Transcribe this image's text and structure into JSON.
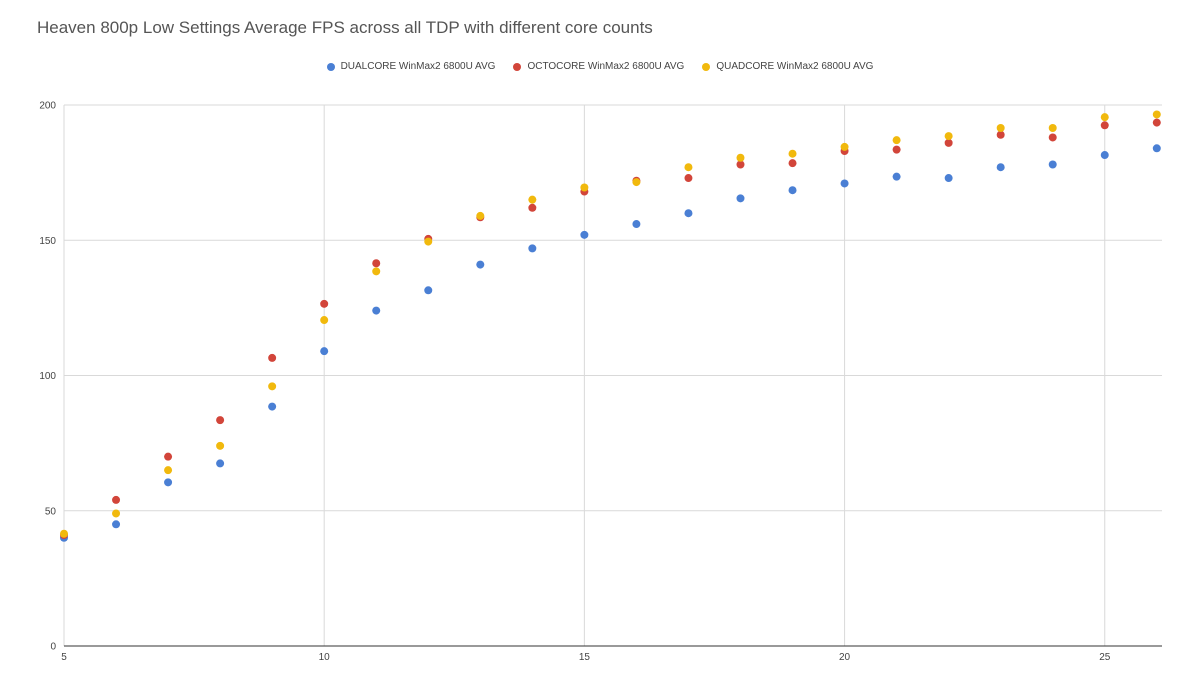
{
  "chart_data": {
    "type": "scatter",
    "title": "Heaven 800p Low Settings Average FPS across all TDP with different core counts",
    "xlabel": "",
    "ylabel": "",
    "xlim": [
      5,
      26.1
    ],
    "ylim": [
      0,
      200
    ],
    "x_ticks": [
      5,
      10,
      15,
      20,
      25
    ],
    "y_ticks": [
      0,
      50,
      100,
      150,
      200
    ],
    "grid": true,
    "legend_position": "top",
    "x": [
      5,
      6,
      7,
      8,
      9,
      10,
      11,
      12,
      13,
      14,
      15,
      16,
      17,
      18,
      19,
      20,
      21,
      22,
      23,
      24,
      25,
      26
    ],
    "series": [
      {
        "name": "DUALCORE WinMax2 6800U AVG",
        "color": "#4a7fd4",
        "values": [
          40,
          45,
          60.5,
          67.5,
          88.5,
          109,
          124,
          131.5,
          141,
          147,
          152,
          156,
          160,
          165.5,
          168.5,
          171,
          173.5,
          173,
          177,
          178,
          181.5,
          184
        ]
      },
      {
        "name": "OCTOCORE WinMax2 6800U AVG",
        "color": "#d2453a",
        "values": [
          41,
          54,
          70,
          83.5,
          106.5,
          126.5,
          141.5,
          150.5,
          158.5,
          162,
          168,
          172,
          173,
          178,
          178.5,
          183,
          183.5,
          186,
          189,
          188,
          192.5,
          193.5
        ]
      },
      {
        "name": "QUADCORE WinMax2 6800U AVG",
        "color": "#f1b90d",
        "values": [
          41.5,
          49,
          65,
          74,
          96,
          120.5,
          138.5,
          149.5,
          159,
          165,
          169.5,
          171.5,
          177,
          180.5,
          182,
          184.5,
          187,
          188.5,
          191.5,
          191.5,
          195.5,
          196.5
        ]
      }
    ]
  }
}
